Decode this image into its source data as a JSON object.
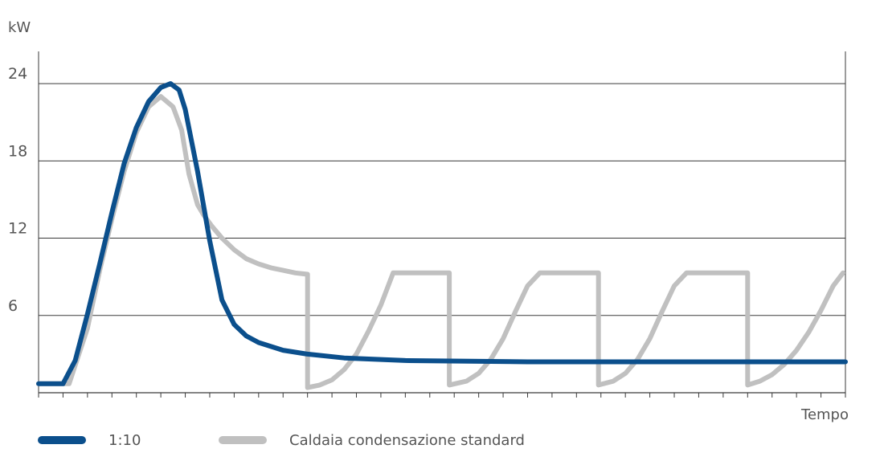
{
  "chart_data": {
    "type": "line",
    "ylabel": "kW",
    "xlabel": "Tempo",
    "ylim": [
      0,
      26.5
    ],
    "yticks": [
      6,
      12,
      18,
      24
    ],
    "grid": "horizontal",
    "legend_position": "bottom",
    "series": [
      {
        "name": "1:10",
        "color": "#0b4f8c",
        "points": [
          [
            0,
            0.7
          ],
          [
            2,
            0.7
          ],
          [
            3,
            2.5
          ],
          [
            4,
            6.1
          ],
          [
            5,
            10
          ],
          [
            6,
            14
          ],
          [
            7,
            17.8
          ],
          [
            8,
            20.6
          ],
          [
            9,
            22.6
          ],
          [
            10,
            23.7
          ],
          [
            10.8,
            24
          ],
          [
            11.5,
            23.5
          ],
          [
            12,
            22
          ],
          [
            13,
            17.2
          ],
          [
            14,
            11.8
          ],
          [
            15,
            7.2
          ],
          [
            16,
            5.3
          ],
          [
            17,
            4.4
          ],
          [
            18,
            3.9
          ],
          [
            20,
            3.3
          ],
          [
            22,
            3
          ],
          [
            25,
            2.7
          ],
          [
            30,
            2.5
          ],
          [
            40,
            2.4
          ],
          [
            50,
            2.4
          ],
          [
            60,
            2.4
          ],
          [
            66,
            2.4
          ]
        ]
      },
      {
        "name": "Caldaia condensazione standard",
        "color": "#c0c0c0",
        "points": [
          [
            0,
            0.7
          ],
          [
            2.5,
            0.7
          ],
          [
            4,
            5
          ],
          [
            5,
            9.5
          ],
          [
            6,
            13.5
          ],
          [
            7,
            17.2
          ],
          [
            8,
            20.2
          ],
          [
            9,
            22.2
          ],
          [
            10,
            23
          ],
          [
            11,
            22.2
          ],
          [
            11.7,
            20.4
          ],
          [
            12.3,
            17
          ],
          [
            13,
            14.6
          ],
          [
            13.5,
            13.8
          ],
          [
            14.2,
            12.9
          ],
          [
            15,
            12
          ],
          [
            16,
            11.1
          ],
          [
            17,
            10.4
          ],
          [
            18,
            10
          ],
          [
            19,
            9.7
          ],
          [
            20,
            9.5
          ],
          [
            21,
            9.3
          ],
          [
            22,
            9.2
          ],
          [
            22,
            0.4
          ],
          [
            23,
            0.6
          ],
          [
            24,
            1
          ],
          [
            25,
            1.8
          ],
          [
            26,
            3
          ],
          [
            27,
            4.8
          ],
          [
            28,
            6.8
          ],
          [
            29,
            9.3
          ],
          [
            33.6,
            9.3
          ],
          [
            33.6,
            0.6
          ],
          [
            35,
            0.9
          ],
          [
            36,
            1.5
          ],
          [
            37,
            2.6
          ],
          [
            38,
            4.2
          ],
          [
            39,
            6.3
          ],
          [
            40,
            8.3
          ],
          [
            41,
            9.3
          ],
          [
            45.8,
            9.3
          ],
          [
            45.8,
            0.6
          ],
          [
            47,
            0.9
          ],
          [
            48,
            1.5
          ],
          [
            49,
            2.6
          ],
          [
            50,
            4.2
          ],
          [
            51,
            6.3
          ],
          [
            52,
            8.3
          ],
          [
            53,
            9.3
          ],
          [
            58,
            9.3
          ],
          [
            58,
            0.6
          ],
          [
            59,
            0.9
          ],
          [
            60,
            1.4
          ],
          [
            61,
            2.2
          ],
          [
            62,
            3.3
          ],
          [
            63,
            4.7
          ],
          [
            64,
            6.4
          ],
          [
            65,
            8.3
          ],
          [
            65.8,
            9.3
          ]
        ]
      }
    ]
  }
}
